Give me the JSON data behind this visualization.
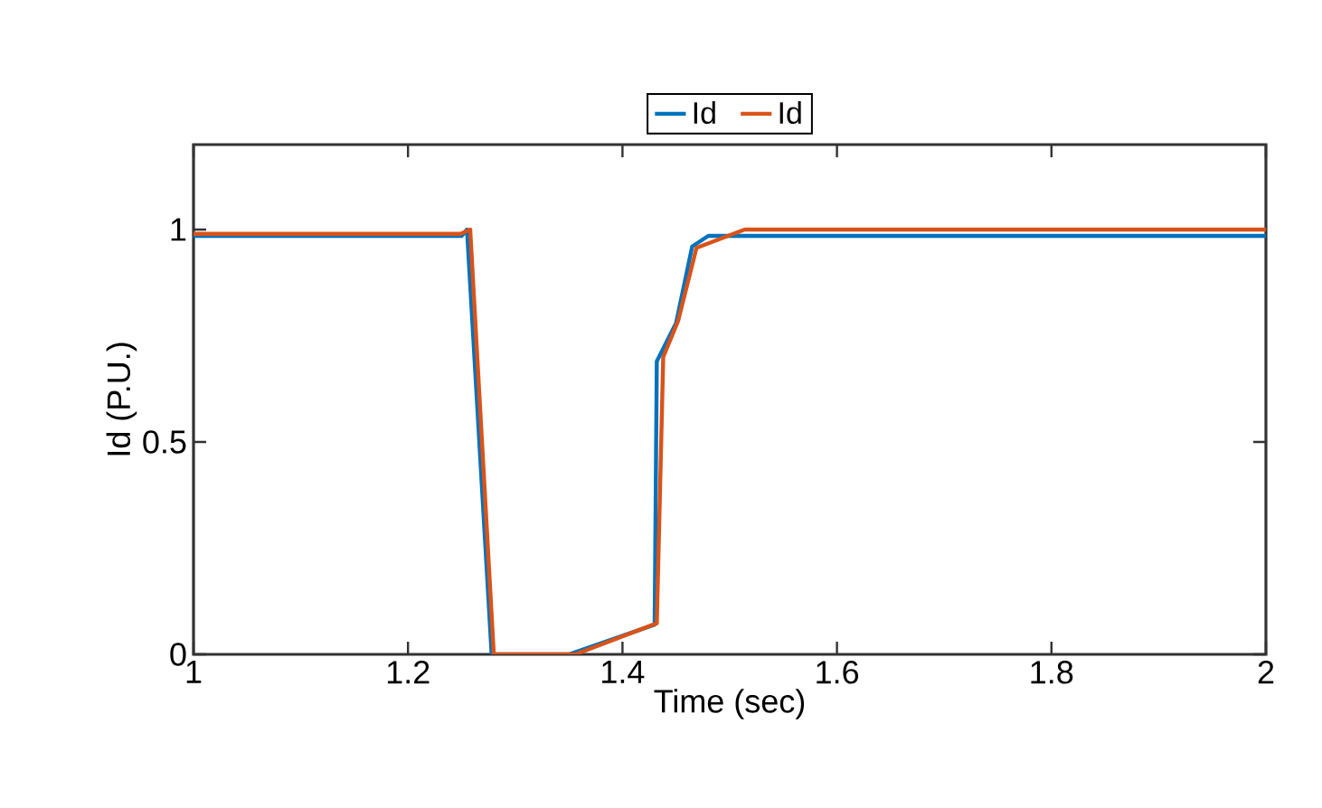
{
  "chart_data": {
    "type": "line",
    "xlabel": "Time (sec)",
    "ylabel": "Id (P.U.)",
    "xlim": [
      1,
      2
    ],
    "ylim": [
      0,
      1.2
    ],
    "xticks": [
      1,
      1.2,
      1.4,
      1.6,
      1.8,
      2
    ],
    "yticks": [
      0,
      0.5,
      1
    ],
    "legend": "top",
    "grid": false,
    "marker": "none",
    "line_style": "solid",
    "series": [
      {
        "name": "Id",
        "color": "#0072bd",
        "x": [
          1,
          1.25,
          1.255,
          1.278,
          1.35,
          1.43,
          1.432,
          1.45,
          1.465,
          1.48,
          2
        ],
        "values": [
          0.985,
          0.985,
          1.0,
          0,
          0,
          0.07,
          0.69,
          0.78,
          0.96,
          0.985,
          0.985
        ]
      },
      {
        "name": "Id",
        "color": "#d95319",
        "x": [
          1,
          1.249,
          1.258,
          1.28,
          1.356,
          1.432,
          1.438,
          1.452,
          1.469,
          1.514,
          2
        ],
        "values": [
          0.99,
          0.99,
          1.0,
          0,
          0,
          0.073,
          0.7,
          0.786,
          0.957,
          1.0,
          1.0
        ]
      }
    ]
  }
}
